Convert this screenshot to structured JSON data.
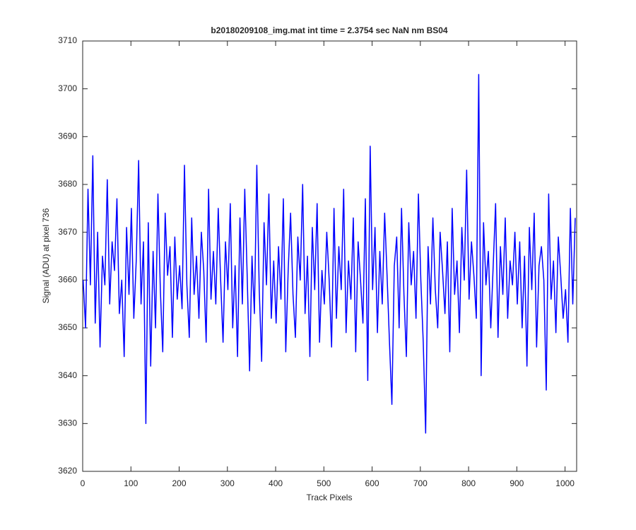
{
  "chart_data": {
    "type": "line",
    "title": "b20180209108_img.mat int time = 2.3754 sec  NaN nm BS04",
    "xlabel": "Track Pixels",
    "ylabel": "Signal (ADU) at pixel 736",
    "color": "#0000ff",
    "xlim": [
      0,
      1024
    ],
    "ylim": [
      3620,
      3710
    ],
    "xticks": [
      0,
      100,
      200,
      300,
      400,
      500,
      600,
      700,
      800,
      900,
      1000
    ],
    "yticks": [
      3620,
      3630,
      3640,
      3650,
      3660,
      3670,
      3680,
      3690,
      3700,
      3710
    ],
    "grid": false,
    "x": [
      1,
      6,
      11,
      16,
      21,
      26,
      31,
      36,
      41,
      46,
      51,
      56,
      61,
      66,
      71,
      76,
      81,
      86,
      91,
      96,
      101,
      106,
      111,
      116,
      121,
      126,
      131,
      136,
      141,
      146,
      151,
      156,
      161,
      166,
      171,
      176,
      181,
      186,
      191,
      196,
      201,
      206,
      211,
      216,
      221,
      226,
      231,
      236,
      241,
      246,
      251,
      256,
      261,
      266,
      271,
      276,
      281,
      286,
      291,
      296,
      301,
      306,
      311,
      316,
      321,
      326,
      331,
      336,
      341,
      346,
      351,
      356,
      361,
      366,
      371,
      376,
      381,
      386,
      391,
      396,
      401,
      406,
      411,
      416,
      421,
      426,
      431,
      436,
      441,
      446,
      451,
      456,
      461,
      466,
      471,
      476,
      481,
      486,
      491,
      496,
      501,
      506,
      511,
      516,
      521,
      526,
      531,
      536,
      541,
      546,
      551,
      556,
      561,
      566,
      571,
      576,
      581,
      586,
      591,
      596,
      601,
      606,
      611,
      616,
      621,
      626,
      631,
      636,
      641,
      646,
      651,
      656,
      661,
      666,
      671,
      676,
      681,
      686,
      691,
      696,
      701,
      706,
      711,
      716,
      721,
      726,
      731,
      736,
      741,
      746,
      751,
      756,
      761,
      766,
      771,
      776,
      781,
      786,
      791,
      796,
      801,
      806,
      811,
      816,
      821,
      826,
      831,
      836,
      841,
      846,
      851,
      856,
      861,
      866,
      871,
      876,
      881,
      886,
      891,
      896,
      901,
      906,
      911,
      916,
      921,
      926,
      931,
      936,
      941,
      946,
      951,
      956,
      961,
      966,
      971,
      976,
      981,
      986,
      991,
      996,
      1001,
      1006,
      1011,
      1016,
      1021
    ],
    "values": [
      3660,
      3650,
      3679,
      3659,
      3686,
      3651,
      3670,
      3646,
      3665,
      3659,
      3681,
      3655,
      3668,
      3662,
      3677,
      3653,
      3660,
      3644,
      3671,
      3657,
      3675,
      3652,
      3664,
      3685,
      3655,
      3668,
      3630,
      3672,
      3642,
      3666,
      3650,
      3678,
      3658,
      3645,
      3674,
      3661,
      3667,
      3648,
      3669,
      3656,
      3663,
      3654,
      3684,
      3659,
      3648,
      3673,
      3657,
      3665,
      3652,
      3670,
      3662,
      3647,
      3679,
      3656,
      3666,
      3655,
      3675,
      3660,
      3647,
      3668,
      3658,
      3676,
      3650,
      3663,
      3644,
      3673,
      3655,
      3679,
      3661,
      3641,
      3665,
      3653,
      3684,
      3658,
      3643,
      3672,
      3659,
      3678,
      3652,
      3664,
      3651,
      3667,
      3656,
      3677,
      3645,
      3662,
      3674,
      3657,
      3648,
      3669,
      3660,
      3680,
      3653,
      3665,
      3644,
      3671,
      3658,
      3676,
      3647,
      3662,
      3655,
      3670,
      3660,
      3646,
      3675,
      3652,
      3667,
      3658,
      3679,
      3649,
      3664,
      3656,
      3673,
      3645,
      3668,
      3660,
      3651,
      3677,
      3639,
      3688,
      3658,
      3671,
      3649,
      3666,
      3655,
      3674,
      3661,
      3647,
      3634,
      3663,
      3669,
      3650,
      3675,
      3657,
      3644,
      3672,
      3659,
      3666,
      3652,
      3678,
      3660,
      3647,
      3628,
      3667,
      3655,
      3673,
      3658,
      3650,
      3670,
      3662,
      3653,
      3668,
      3645,
      3675,
      3657,
      3664,
      3649,
      3671,
      3660,
      3683,
      3656,
      3668,
      3661,
      3652,
      3703,
      3640,
      3672,
      3659,
      3666,
      3650,
      3663,
      3676,
      3648,
      3667,
      3657,
      3673,
      3652,
      3664,
      3659,
      3670,
      3655,
      3668,
      3650,
      3665,
      3642,
      3671,
      3658,
      3674,
      3646,
      3663,
      3667,
      3660,
      3637,
      3678,
      3656,
      3664,
      3649,
      3669,
      3661,
      3652,
      3658,
      3647,
      3675,
      3655,
      3673
    ]
  }
}
